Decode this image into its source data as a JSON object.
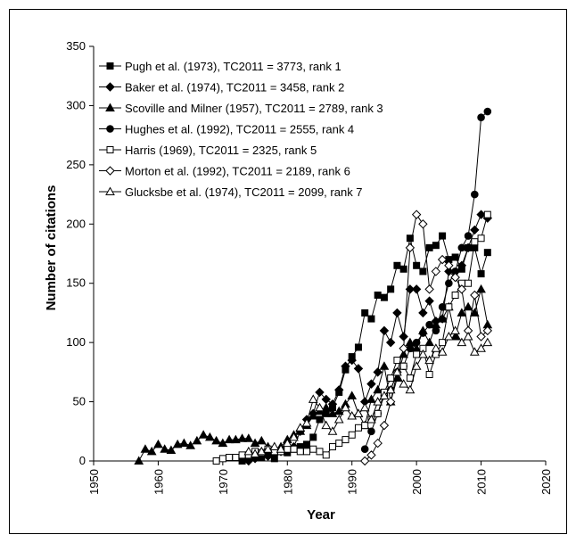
{
  "chart_data": {
    "type": "line",
    "xlabel": "Year",
    "ylabel": "Number of citations",
    "xlim": [
      1950,
      2020
    ],
    "ylim": [
      0,
      350
    ],
    "xticks": [
      1950,
      1960,
      1970,
      1980,
      1990,
      2000,
      2010,
      2020
    ],
    "yticks": [
      0,
      50,
      100,
      150,
      200,
      250,
      300,
      350
    ],
    "legend_position": "top-left",
    "series": [
      {
        "name": "Pugh et al. (1973), TC2011 = 3773, rank 1",
        "marker": "square-filled",
        "x": [
          1973,
          1974,
          1975,
          1976,
          1977,
          1978,
          1979,
          1980,
          1981,
          1982,
          1983,
          1984,
          1985,
          1986,
          1987,
          1988,
          1989,
          1990,
          1991,
          1992,
          1993,
          1994,
          1995,
          1996,
          1997,
          1998,
          1999,
          2000,
          2001,
          2002,
          2003,
          2004,
          2005,
          2006,
          2007,
          2008,
          2009,
          2010,
          2011
        ],
        "y": [
          0,
          3,
          5,
          3,
          8,
          2,
          8,
          7,
          10,
          12,
          14,
          20,
          35,
          40,
          45,
          58,
          77,
          88,
          96,
          125,
          120,
          140,
          138,
          145,
          165,
          162,
          188,
          165,
          160,
          180,
          182,
          190,
          170,
          172,
          162,
          180,
          180,
          158,
          176
        ]
      },
      {
        "name": "Baker et al. (1974), TC2011 = 3458, rank 2",
        "marker": "diamond-filled",
        "x": [
          1974,
          1975,
          1976,
          1977,
          1978,
          1979,
          1980,
          1981,
          1982,
          1983,
          1984,
          1985,
          1986,
          1987,
          1988,
          1989,
          1990,
          1991,
          1992,
          1993,
          1994,
          1995,
          1996,
          1997,
          1998,
          1999,
          2000,
          2001,
          2002,
          2003,
          2004,
          2005,
          2006,
          2007,
          2008,
          2009,
          2010,
          2011
        ],
        "y": [
          0,
          2,
          5,
          4,
          6,
          8,
          10,
          12,
          25,
          35,
          40,
          58,
          52,
          48,
          60,
          80,
          85,
          78,
          50,
          65,
          75,
          110,
          100,
          125,
          105,
          145,
          145,
          125,
          135,
          118,
          120,
          160,
          155,
          165,
          180,
          195,
          208,
          205
        ]
      },
      {
        "name": "Scoville and Milner (1957), TC2011 = 2789, rank 3",
        "marker": "triangle-filled",
        "x": [
          1957,
          1958,
          1959,
          1960,
          1961,
          1962,
          1963,
          1964,
          1965,
          1966,
          1967,
          1968,
          1969,
          1970,
          1971,
          1972,
          1973,
          1974,
          1975,
          1976,
          1977,
          1978,
          1979,
          1980,
          1981,
          1982,
          1983,
          1984,
          1985,
          1986,
          1987,
          1988,
          1989,
          1990,
          1991,
          1992,
          1993,
          1994,
          1995,
          1996,
          1997,
          1998,
          1999,
          2000,
          2001,
          2002,
          2003,
          2004,
          2005,
          2006,
          2007,
          2008,
          2009,
          2010,
          2011
        ],
        "y": [
          0,
          10,
          8,
          14,
          10,
          9,
          14,
          15,
          13,
          17,
          22,
          20,
          17,
          15,
          18,
          18,
          19,
          19,
          15,
          17,
          12,
          10,
          12,
          18,
          22,
          25,
          30,
          38,
          42,
          45,
          40,
          42,
          48,
          55,
          40,
          30,
          52,
          60,
          80,
          50,
          70,
          90,
          100,
          95,
          110,
          100,
          115,
          120,
          130,
          105,
          125,
          130,
          125,
          145,
          115
        ]
      },
      {
        "name": "Hughes et al. (1992), TC2011 = 2555, rank 4",
        "marker": "circle-filled",
        "x": [
          1992,
          1993,
          1994,
          1995,
          1996,
          1997,
          1998,
          1999,
          2000,
          2001,
          2002,
          2003,
          2004,
          2005,
          2006,
          2007,
          2008,
          2009,
          2010,
          2011
        ],
        "y": [
          10,
          25,
          40,
          55,
          60,
          75,
          80,
          95,
          100,
          108,
          115,
          110,
          130,
          150,
          160,
          180,
          190,
          225,
          290,
          295
        ]
      },
      {
        "name": "Harris (1969), TC2011 = 2325, rank 5",
        "marker": "square-open",
        "x": [
          1969,
          1970,
          1971,
          1972,
          1973,
          1974,
          1975,
          1976,
          1977,
          1978,
          1979,
          1980,
          1981,
          1982,
          1983,
          1984,
          1985,
          1986,
          1987,
          1988,
          1989,
          1990,
          1991,
          1992,
          1993,
          1994,
          1995,
          1996,
          1997,
          1998,
          1999,
          2000,
          2001,
          2002,
          2003,
          2004,
          2005,
          2006,
          2007,
          2008,
          2009,
          2010,
          2011
        ],
        "y": [
          0,
          2,
          3,
          3,
          5,
          5,
          8,
          7,
          10,
          8,
          8,
          10,
          10,
          8,
          8,
          10,
          8,
          5,
          12,
          15,
          18,
          22,
          28,
          30,
          35,
          40,
          58,
          70,
          85,
          80,
          70,
          90,
          95,
          73,
          90,
          100,
          130,
          140,
          150,
          150,
          185,
          188,
          208
        ]
      },
      {
        "name": "Morton et al. (1992), TC2011 = 2189, rank 6",
        "marker": "diamond-open",
        "x": [
          1992,
          1993,
          1994,
          1995,
          1996,
          1997,
          1998,
          1999,
          2000,
          2001,
          2002,
          2003,
          2004,
          2005,
          2006,
          2007,
          2008,
          2009,
          2010,
          2011
        ],
        "y": [
          0,
          5,
          15,
          30,
          50,
          75,
          95,
          180,
          208,
          200,
          145,
          160,
          170,
          165,
          155,
          145,
          110,
          140,
          105,
          110
        ]
      },
      {
        "name": "Glucksbe et al. (1974), TC2011 = 2099, rank 7",
        "marker": "triangle-open",
        "x": [
          1974,
          1975,
          1976,
          1977,
          1978,
          1979,
          1980,
          1981,
          1982,
          1983,
          1984,
          1985,
          1986,
          1987,
          1988,
          1989,
          1990,
          1991,
          1992,
          1993,
          1994,
          1995,
          1996,
          1997,
          1998,
          1999,
          2000,
          2001,
          2002,
          2003,
          2004,
          2005,
          2006,
          2007,
          2008,
          2009,
          2010,
          2011
        ],
        "y": [
          8,
          6,
          8,
          10,
          12,
          10,
          15,
          20,
          28,
          32,
          52,
          45,
          30,
          25,
          35,
          45,
          38,
          40,
          45,
          35,
          50,
          55,
          60,
          75,
          65,
          60,
          80,
          90,
          85,
          95,
          92,
          105,
          110,
          100,
          105,
          92,
          95,
          100
        ]
      }
    ]
  }
}
